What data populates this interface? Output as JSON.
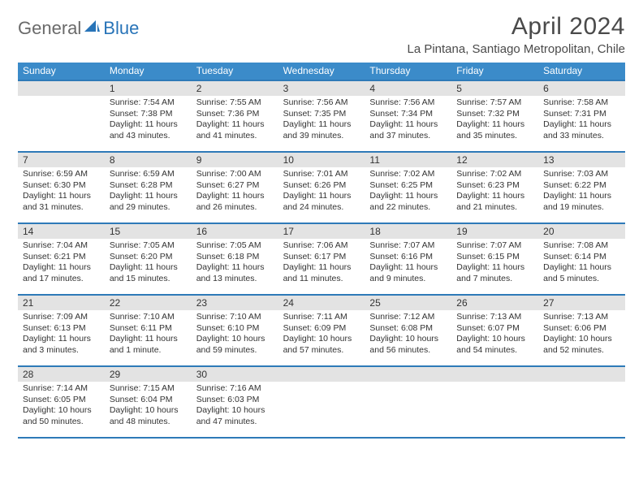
{
  "logo": {
    "part1": "General",
    "part2": "Blue"
  },
  "title": "April 2024",
  "location": "La Pintana, Santiago Metropolitan, Chile",
  "colors": {
    "header_bg": "#3b8bc9",
    "border": "#2e7ab8",
    "daynum_bg": "#e3e3e3",
    "text": "#333333",
    "logo_gray": "#6a6a6a",
    "logo_blue": "#2874b8"
  },
  "days_of_week": [
    "Sunday",
    "Monday",
    "Tuesday",
    "Wednesday",
    "Thursday",
    "Friday",
    "Saturday"
  ],
  "weeks": [
    [
      {
        "num": "",
        "sunrise": "",
        "sunset": "",
        "daylight": ""
      },
      {
        "num": "1",
        "sunrise": "Sunrise: 7:54 AM",
        "sunset": "Sunset: 7:38 PM",
        "daylight": "Daylight: 11 hours and 43 minutes."
      },
      {
        "num": "2",
        "sunrise": "Sunrise: 7:55 AM",
        "sunset": "Sunset: 7:36 PM",
        "daylight": "Daylight: 11 hours and 41 minutes."
      },
      {
        "num": "3",
        "sunrise": "Sunrise: 7:56 AM",
        "sunset": "Sunset: 7:35 PM",
        "daylight": "Daylight: 11 hours and 39 minutes."
      },
      {
        "num": "4",
        "sunrise": "Sunrise: 7:56 AM",
        "sunset": "Sunset: 7:34 PM",
        "daylight": "Daylight: 11 hours and 37 minutes."
      },
      {
        "num": "5",
        "sunrise": "Sunrise: 7:57 AM",
        "sunset": "Sunset: 7:32 PM",
        "daylight": "Daylight: 11 hours and 35 minutes."
      },
      {
        "num": "6",
        "sunrise": "Sunrise: 7:58 AM",
        "sunset": "Sunset: 7:31 PM",
        "daylight": "Daylight: 11 hours and 33 minutes."
      }
    ],
    [
      {
        "num": "7",
        "sunrise": "Sunrise: 6:59 AM",
        "sunset": "Sunset: 6:30 PM",
        "daylight": "Daylight: 11 hours and 31 minutes."
      },
      {
        "num": "8",
        "sunrise": "Sunrise: 6:59 AM",
        "sunset": "Sunset: 6:28 PM",
        "daylight": "Daylight: 11 hours and 29 minutes."
      },
      {
        "num": "9",
        "sunrise": "Sunrise: 7:00 AM",
        "sunset": "Sunset: 6:27 PM",
        "daylight": "Daylight: 11 hours and 26 minutes."
      },
      {
        "num": "10",
        "sunrise": "Sunrise: 7:01 AM",
        "sunset": "Sunset: 6:26 PM",
        "daylight": "Daylight: 11 hours and 24 minutes."
      },
      {
        "num": "11",
        "sunrise": "Sunrise: 7:02 AM",
        "sunset": "Sunset: 6:25 PM",
        "daylight": "Daylight: 11 hours and 22 minutes."
      },
      {
        "num": "12",
        "sunrise": "Sunrise: 7:02 AM",
        "sunset": "Sunset: 6:23 PM",
        "daylight": "Daylight: 11 hours and 21 minutes."
      },
      {
        "num": "13",
        "sunrise": "Sunrise: 7:03 AM",
        "sunset": "Sunset: 6:22 PM",
        "daylight": "Daylight: 11 hours and 19 minutes."
      }
    ],
    [
      {
        "num": "14",
        "sunrise": "Sunrise: 7:04 AM",
        "sunset": "Sunset: 6:21 PM",
        "daylight": "Daylight: 11 hours and 17 minutes."
      },
      {
        "num": "15",
        "sunrise": "Sunrise: 7:05 AM",
        "sunset": "Sunset: 6:20 PM",
        "daylight": "Daylight: 11 hours and 15 minutes."
      },
      {
        "num": "16",
        "sunrise": "Sunrise: 7:05 AM",
        "sunset": "Sunset: 6:18 PM",
        "daylight": "Daylight: 11 hours and 13 minutes."
      },
      {
        "num": "17",
        "sunrise": "Sunrise: 7:06 AM",
        "sunset": "Sunset: 6:17 PM",
        "daylight": "Daylight: 11 hours and 11 minutes."
      },
      {
        "num": "18",
        "sunrise": "Sunrise: 7:07 AM",
        "sunset": "Sunset: 6:16 PM",
        "daylight": "Daylight: 11 hours and 9 minutes."
      },
      {
        "num": "19",
        "sunrise": "Sunrise: 7:07 AM",
        "sunset": "Sunset: 6:15 PM",
        "daylight": "Daylight: 11 hours and 7 minutes."
      },
      {
        "num": "20",
        "sunrise": "Sunrise: 7:08 AM",
        "sunset": "Sunset: 6:14 PM",
        "daylight": "Daylight: 11 hours and 5 minutes."
      }
    ],
    [
      {
        "num": "21",
        "sunrise": "Sunrise: 7:09 AM",
        "sunset": "Sunset: 6:13 PM",
        "daylight": "Daylight: 11 hours and 3 minutes."
      },
      {
        "num": "22",
        "sunrise": "Sunrise: 7:10 AM",
        "sunset": "Sunset: 6:11 PM",
        "daylight": "Daylight: 11 hours and 1 minute."
      },
      {
        "num": "23",
        "sunrise": "Sunrise: 7:10 AM",
        "sunset": "Sunset: 6:10 PM",
        "daylight": "Daylight: 10 hours and 59 minutes."
      },
      {
        "num": "24",
        "sunrise": "Sunrise: 7:11 AM",
        "sunset": "Sunset: 6:09 PM",
        "daylight": "Daylight: 10 hours and 57 minutes."
      },
      {
        "num": "25",
        "sunrise": "Sunrise: 7:12 AM",
        "sunset": "Sunset: 6:08 PM",
        "daylight": "Daylight: 10 hours and 56 minutes."
      },
      {
        "num": "26",
        "sunrise": "Sunrise: 7:13 AM",
        "sunset": "Sunset: 6:07 PM",
        "daylight": "Daylight: 10 hours and 54 minutes."
      },
      {
        "num": "27",
        "sunrise": "Sunrise: 7:13 AM",
        "sunset": "Sunset: 6:06 PM",
        "daylight": "Daylight: 10 hours and 52 minutes."
      }
    ],
    [
      {
        "num": "28",
        "sunrise": "Sunrise: 7:14 AM",
        "sunset": "Sunset: 6:05 PM",
        "daylight": "Daylight: 10 hours and 50 minutes."
      },
      {
        "num": "29",
        "sunrise": "Sunrise: 7:15 AM",
        "sunset": "Sunset: 6:04 PM",
        "daylight": "Daylight: 10 hours and 48 minutes."
      },
      {
        "num": "30",
        "sunrise": "Sunrise: 7:16 AM",
        "sunset": "Sunset: 6:03 PM",
        "daylight": "Daylight: 10 hours and 47 minutes."
      },
      {
        "num": "",
        "sunrise": "",
        "sunset": "",
        "daylight": ""
      },
      {
        "num": "",
        "sunrise": "",
        "sunset": "",
        "daylight": ""
      },
      {
        "num": "",
        "sunrise": "",
        "sunset": "",
        "daylight": ""
      },
      {
        "num": "",
        "sunrise": "",
        "sunset": "",
        "daylight": ""
      }
    ]
  ]
}
